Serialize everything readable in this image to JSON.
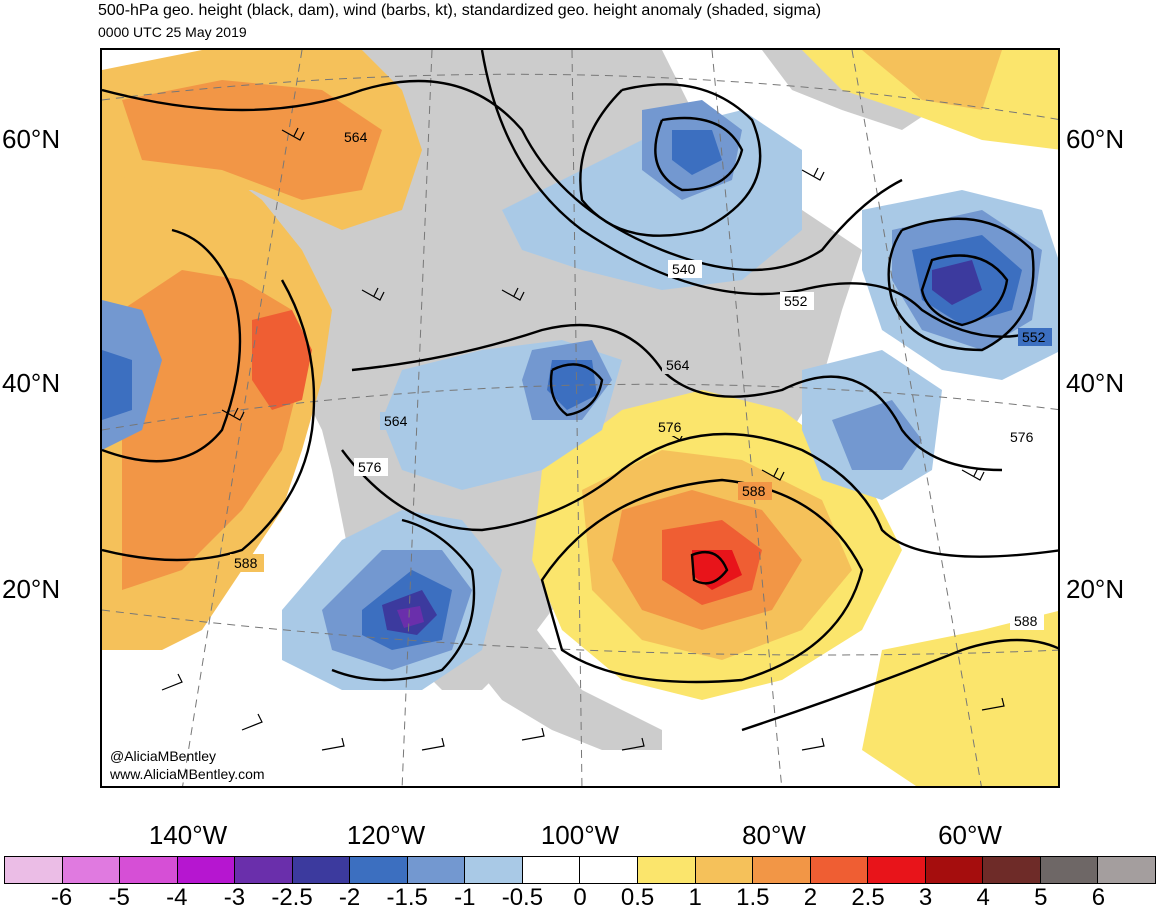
{
  "header": {
    "title": "500-hPa geo. height (black, dam), wind (barbs, kt), standardized geo. height anomaly (shaded, sigma)",
    "subtitle": "0000 UTC 25 May 2019"
  },
  "map": {
    "lat_labels": [
      "60°N",
      "40°N",
      "20°N"
    ],
    "lon_labels": [
      "140°W",
      "120°W",
      "100°W",
      "80°W",
      "60°W"
    ],
    "contour_labels": [
      "564",
      "540",
      "552",
      "552",
      "564",
      "564",
      "576",
      "576",
      "588",
      "588",
      "588",
      "576"
    ],
    "credit_line1": "@AliciaMBentley",
    "credit_line2": "www.AliciaMBentley.com",
    "colors": {
      "land": "#cccccc",
      "ocean": "#ffffff",
      "contour": "#000000"
    }
  },
  "colorbar": {
    "labels": [
      "-6",
      "-5",
      "-4",
      "-3",
      "-2.5",
      "-2",
      "-1.5",
      "-1",
      "-0.5",
      "0",
      "0.5",
      "1",
      "1.5",
      "2",
      "2.5",
      "3",
      "4",
      "5",
      "6"
    ],
    "colors": [
      "#ebbde6",
      "#e07ae0",
      "#d64fd6",
      "#b616d0",
      "#6a2fab",
      "#3c3a9e",
      "#3c6fc0",
      "#7398d0",
      "#a9c9e6",
      "#ffffff",
      "#ffffff",
      "#fbe56c",
      "#f5c15a",
      "#f29646",
      "#ef5e33",
      "#e8141a",
      "#a50d0d",
      "#6e2b28",
      "#6e6766",
      "#a49e9e"
    ]
  }
}
